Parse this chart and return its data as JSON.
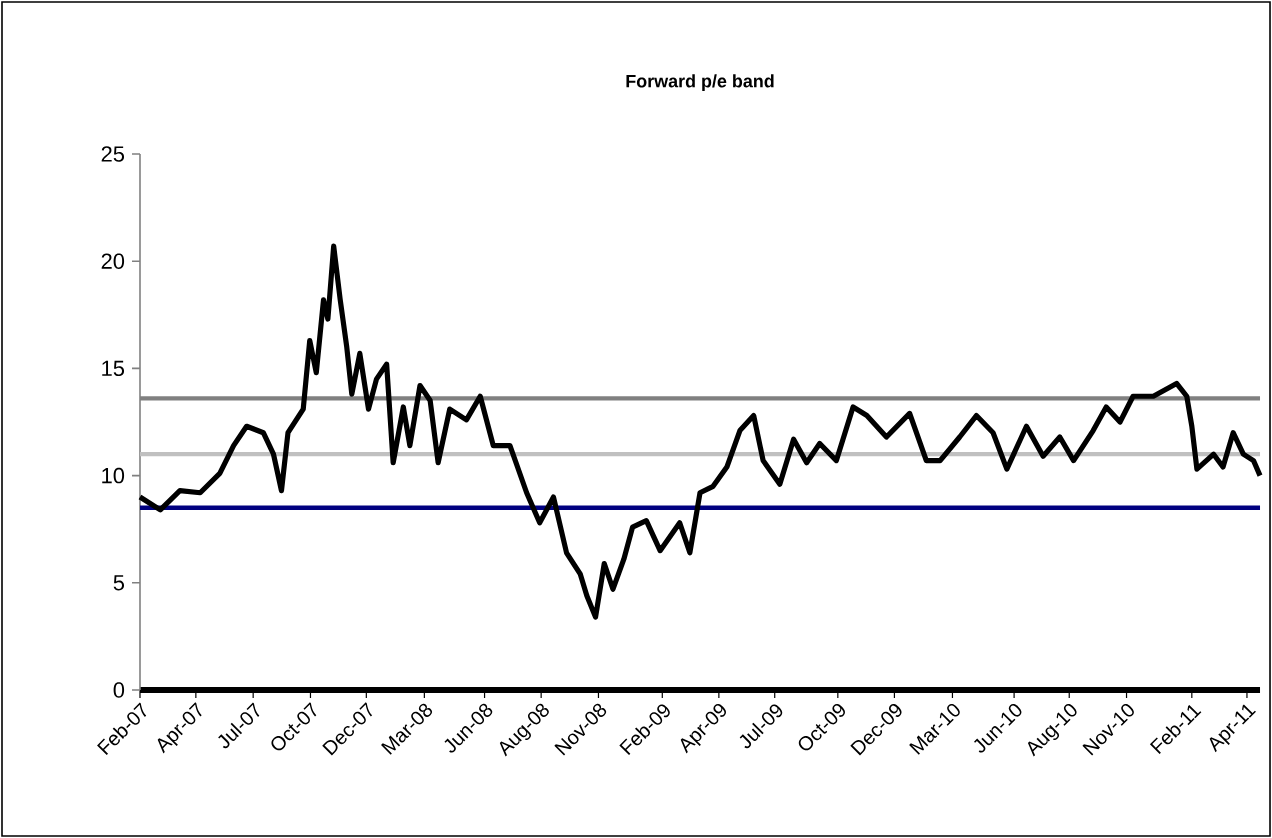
{
  "chart_data": {
    "type": "line",
    "title": "Forward p/e band",
    "x": [
      "2007-02-12",
      "2007-03-12",
      "2007-04-08",
      "2007-05-06",
      "2007-06-02",
      "2007-06-21",
      "2007-07-09",
      "2007-08-01",
      "2007-08-15",
      "2007-08-26",
      "2007-09-04",
      "2007-09-25",
      "2007-10-04",
      "2007-10-13",
      "2007-10-23",
      "2007-10-29",
      "2007-11-06",
      "2007-11-15",
      "2007-11-24",
      "2007-12-01",
      "2007-12-12",
      "2007-12-24",
      "2008-01-04",
      "2008-01-18",
      "2008-01-27",
      "2008-02-10",
      "2008-02-19",
      "2008-03-04",
      "2008-03-18",
      "2008-03-29",
      "2008-04-14",
      "2008-05-07",
      "2008-05-26",
      "2008-06-13",
      "2008-07-06",
      "2008-07-29",
      "2008-08-16",
      "2008-09-04",
      "2008-09-22",
      "2008-10-11",
      "2008-10-20",
      "2008-11-01",
      "2008-11-13",
      "2008-11-25",
      "2008-12-10",
      "2008-12-22",
      "2009-01-10",
      "2009-01-29",
      "2009-02-25",
      "2009-03-11",
      "2009-03-25",
      "2009-04-12",
      "2009-05-01",
      "2009-05-19",
      "2009-06-07",
      "2009-06-20",
      "2009-07-13",
      "2009-08-01",
      "2009-08-19",
      "2009-09-06",
      "2009-09-29",
      "2009-10-22",
      "2009-11-10",
      "2009-12-07",
      "2010-01-08",
      "2010-01-31",
      "2010-02-19",
      "2010-03-18",
      "2010-04-10",
      "2010-05-03",
      "2010-05-22",
      "2010-06-18",
      "2010-07-11",
      "2010-08-03",
      "2010-08-22",
      "2010-09-18",
      "2010-10-06",
      "2010-10-25",
      "2010-11-12",
      "2010-12-10",
      "2011-01-11",
      "2011-01-25",
      "2011-02-01",
      "2011-02-08",
      "2011-03-03",
      "2011-03-16",
      "2011-03-30",
      "2011-04-13",
      "2011-04-27",
      "2011-05-06"
    ],
    "series": [
      {
        "color": "#000000",
        "values": [
          9.0,
          8.4,
          9.3,
          9.2,
          10.1,
          11.4,
          12.3,
          12.0,
          11.0,
          9.3,
          12.0,
          13.1,
          16.3,
          14.8,
          18.2,
          17.3,
          20.7,
          18.2,
          16.0,
          13.8,
          15.7,
          13.1,
          14.5,
          15.2,
          10.6,
          13.2,
          11.4,
          14.2,
          13.5,
          10.6,
          13.1,
          12.6,
          13.7,
          11.4,
          11.4,
          9.2,
          7.8,
          9.0,
          6.4,
          5.4,
          4.4,
          3.4,
          5.9,
          4.7,
          6.1,
          7.6,
          7.9,
          6.5,
          7.8,
          6.4,
          9.2,
          9.5,
          10.4,
          12.1,
          12.8,
          10.7,
          9.6,
          11.7,
          10.6,
          11.5,
          10.7,
          13.2,
          12.8,
          11.8,
          12.9,
          10.7,
          10.7,
          11.8,
          12.8,
          12.0,
          10.3,
          12.3,
          10.9,
          11.8,
          10.7,
          12.1,
          13.2,
          12.5,
          13.7,
          13.7,
          14.3,
          13.7,
          12.3,
          10.3,
          11.0,
          10.4,
          12.0,
          11.0,
          10.7,
          10.0
        ]
      }
    ],
    "xlim": [
      "2007-02-12",
      "2011-05-06"
    ],
    "xticks": [
      {
        "value": "2007-02-12",
        "label": "Feb-07"
      },
      {
        "value": "2007-04-30",
        "label": "Apr-07"
      },
      {
        "value": "2007-07-18",
        "label": "Jul-07"
      },
      {
        "value": "2007-10-05",
        "label": "Oct-07"
      },
      {
        "value": "2007-12-21",
        "label": "Dec-07"
      },
      {
        "value": "2008-03-10",
        "label": "Mar-08"
      },
      {
        "value": "2008-06-01",
        "label": "Jun-08"
      },
      {
        "value": "2008-08-18",
        "label": "Aug-08"
      },
      {
        "value": "2008-11-05",
        "label": "Nov-08"
      },
      {
        "value": "2009-02-01",
        "label": "Feb-09"
      },
      {
        "value": "2009-04-20",
        "label": "Apr-09"
      },
      {
        "value": "2009-07-06",
        "label": "Jul-09"
      },
      {
        "value": "2009-10-01",
        "label": "Oct-09"
      },
      {
        "value": "2009-12-18",
        "label": "Dec-09"
      },
      {
        "value": "2010-03-08",
        "label": "Mar-10"
      },
      {
        "value": "2010-06-01",
        "label": "Jun-10"
      },
      {
        "value": "2010-08-16",
        "label": "Aug-10"
      },
      {
        "value": "2010-11-03",
        "label": "Nov-10"
      },
      {
        "value": "2011-02-01",
        "label": "Feb-11"
      },
      {
        "value": "2011-04-18",
        "label": "Apr-11"
      }
    ],
    "ylim": [
      0,
      25
    ],
    "yticks": [
      0,
      5,
      10,
      15,
      20,
      25
    ],
    "ref_lines": [
      {
        "axis": "y",
        "value": 13.6,
        "color": "#808080"
      },
      {
        "axis": "y",
        "value": 11.0,
        "color": "#c0c0c0"
      },
      {
        "axis": "y",
        "value": 8.5,
        "color": "#000080"
      }
    ],
    "grid": false,
    "legend": false,
    "marker": "none",
    "line_style": "solid"
  }
}
